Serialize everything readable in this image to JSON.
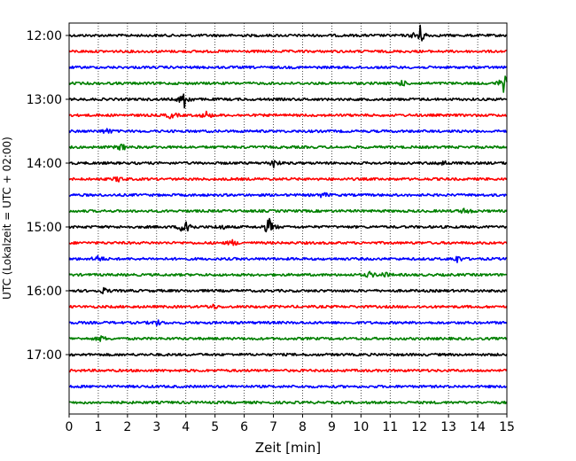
{
  "chart_data": {
    "type": "line",
    "title": "",
    "xlabel": "Zeit  [min]",
    "ylabel": "UTC (Lokalzeit = UTC + 02:00)",
    "xlim": [
      0,
      15
    ],
    "x_ticks": [
      0,
      1,
      2,
      3,
      4,
      5,
      6,
      7,
      8,
      9,
      10,
      11,
      12,
      13,
      14,
      15
    ],
    "x_grid": "dotted",
    "row_interval_min": 15,
    "y_tick_labels": [
      "12:00",
      "13:00",
      "14:00",
      "15:00",
      "16:00",
      "17:00"
    ],
    "trace_colors": [
      "#000000",
      "#ff0000",
      "#0000ff",
      "#008000"
    ],
    "traces": [
      {
        "start": "12:00",
        "events": [
          {
            "t": 12.0,
            "amp": 14
          }
        ]
      },
      {
        "start": "12:15",
        "events": []
      },
      {
        "start": "12:30",
        "events": []
      },
      {
        "start": "12:45",
        "events": [
          {
            "t": 14.9,
            "amp": 10
          },
          {
            "t": 11.4,
            "amp": 3
          }
        ]
      },
      {
        "start": "13:00",
        "events": [
          {
            "t": 3.95,
            "amp": 10
          }
        ]
      },
      {
        "start": "13:15",
        "events": [
          {
            "t": 3.5,
            "amp": 4
          },
          {
            "t": 4.7,
            "amp": 4
          }
        ]
      },
      {
        "start": "13:30",
        "events": [
          {
            "t": 1.3,
            "amp": 3
          }
        ]
      },
      {
        "start": "13:45",
        "events": [
          {
            "t": 1.8,
            "amp": 4
          }
        ]
      },
      {
        "start": "14:00",
        "events": [
          {
            "t": 7.0,
            "amp": 5
          },
          {
            "t": 12.8,
            "amp": 3
          }
        ]
      },
      {
        "start": "14:15",
        "events": [
          {
            "t": 1.7,
            "amp": 3
          }
        ]
      },
      {
        "start": "14:30",
        "events": [
          {
            "t": 8.7,
            "amp": 3
          }
        ]
      },
      {
        "start": "14:45",
        "events": [
          {
            "t": 13.6,
            "amp": 4
          }
        ]
      },
      {
        "start": "15:00",
        "events": [
          {
            "t": 4.0,
            "amp": 15
          },
          {
            "t": 6.85,
            "amp": 10
          },
          {
            "t": 5.2,
            "amp": 3
          }
        ]
      },
      {
        "start": "15:15",
        "events": [
          {
            "t": 5.6,
            "amp": 3
          }
        ]
      },
      {
        "start": "15:30",
        "events": [
          {
            "t": 1.0,
            "amp": 4
          },
          {
            "t": 13.3,
            "amp": 4
          }
        ]
      },
      {
        "start": "15:45",
        "events": [
          {
            "t": 10.3,
            "amp": 3
          },
          {
            "t": 10.8,
            "amp": 3
          }
        ]
      },
      {
        "start": "16:00",
        "events": [
          {
            "t": 1.2,
            "amp": 3
          }
        ]
      },
      {
        "start": "16:15",
        "events": [
          {
            "t": 4.9,
            "amp": 3
          }
        ]
      },
      {
        "start": "16:30",
        "events": [
          {
            "t": 3.0,
            "amp": 3
          }
        ]
      },
      {
        "start": "16:45",
        "events": [
          {
            "t": 1.1,
            "amp": 3
          }
        ]
      },
      {
        "start": "17:00",
        "events": []
      },
      {
        "start": "17:15",
        "events": []
      },
      {
        "start": "17:30",
        "events": []
      },
      {
        "start": "17:45",
        "events": []
      }
    ]
  }
}
